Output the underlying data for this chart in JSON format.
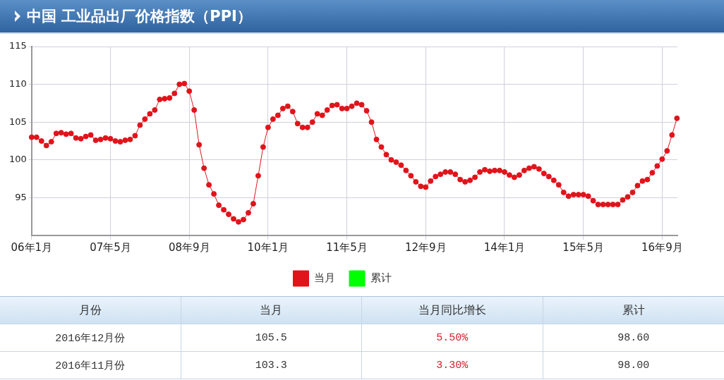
{
  "chart_data": {
    "type": "line",
    "title": "中国 工业品出厂价格指数（PPI）",
    "x": [
      "2006-01",
      "2006-02",
      "2006-03",
      "2006-04",
      "2006-05",
      "2006-06",
      "2006-07",
      "2006-08",
      "2006-09",
      "2006-10",
      "2006-11",
      "2006-12",
      "2007-01",
      "2007-02",
      "2007-03",
      "2007-04",
      "2007-05",
      "2007-06",
      "2007-07",
      "2007-08",
      "2007-09",
      "2007-10",
      "2007-11",
      "2007-12",
      "2008-01",
      "2008-02",
      "2008-03",
      "2008-04",
      "2008-05",
      "2008-06",
      "2008-07",
      "2008-08",
      "2008-09",
      "2008-10",
      "2008-11",
      "2008-12",
      "2009-01",
      "2009-02",
      "2009-03",
      "2009-04",
      "2009-05",
      "2009-06",
      "2009-07",
      "2009-08",
      "2009-09",
      "2009-10",
      "2009-11",
      "2009-12",
      "2010-01",
      "2010-02",
      "2010-03",
      "2010-04",
      "2010-05",
      "2010-06",
      "2010-07",
      "2010-08",
      "2010-09",
      "2010-10",
      "2010-11",
      "2010-12",
      "2011-01",
      "2011-02",
      "2011-03",
      "2011-04",
      "2011-05",
      "2011-06",
      "2011-07",
      "2011-08",
      "2011-09",
      "2011-10",
      "2011-11",
      "2011-12",
      "2012-01",
      "2012-02",
      "2012-03",
      "2012-04",
      "2012-05",
      "2012-06",
      "2012-07",
      "2012-08",
      "2012-09",
      "2012-10",
      "2012-11",
      "2012-12",
      "2013-01",
      "2013-02",
      "2013-03",
      "2013-04",
      "2013-05",
      "2013-06",
      "2013-07",
      "2013-08",
      "2013-09",
      "2013-10",
      "2013-11",
      "2013-12",
      "2014-01",
      "2014-02",
      "2014-03",
      "2014-04",
      "2014-05",
      "2014-06",
      "2014-07",
      "2014-08",
      "2014-09",
      "2014-10",
      "2014-11",
      "2014-12",
      "2015-01",
      "2015-02",
      "2015-03",
      "2015-04",
      "2015-05",
      "2015-06",
      "2015-07",
      "2015-08",
      "2015-09",
      "2015-10",
      "2015-11",
      "2015-12",
      "2016-01",
      "2016-02",
      "2016-03",
      "2016-04",
      "2016-05",
      "2016-06",
      "2016-07",
      "2016-08",
      "2016-09",
      "2016-10",
      "2016-11",
      "2016-12"
    ],
    "series": [
      {
        "name": "当月",
        "color": "#e0141b",
        "values": [
          103.0,
          103.0,
          102.5,
          101.9,
          102.4,
          103.5,
          103.6,
          103.4,
          103.5,
          102.9,
          102.8,
          103.1,
          103.3,
          102.6,
          102.7,
          102.9,
          102.8,
          102.5,
          102.4,
          102.6,
          102.7,
          103.2,
          104.6,
          105.4,
          106.1,
          106.6,
          108.0,
          108.1,
          108.2,
          108.8,
          110.0,
          110.1,
          109.1,
          106.6,
          102.0,
          98.9,
          96.7,
          95.5,
          94.0,
          93.4,
          92.8,
          92.2,
          91.8,
          92.1,
          93.0,
          94.2,
          97.9,
          101.7,
          104.3,
          105.4,
          105.9,
          106.8,
          107.1,
          106.4,
          104.8,
          104.3,
          104.3,
          105.0,
          106.1,
          105.9,
          106.6,
          107.2,
          107.3,
          106.8,
          106.8,
          107.1,
          107.5,
          107.3,
          106.5,
          105.0,
          102.7,
          101.7,
          100.7,
          100.0,
          99.7,
          99.3,
          98.6,
          97.9,
          97.1,
          96.5,
          96.4,
          97.2,
          97.8,
          98.1,
          98.4,
          98.4,
          98.1,
          97.4,
          97.1,
          97.3,
          97.7,
          98.4,
          98.7,
          98.5,
          98.6,
          98.6,
          98.4,
          98.0,
          97.7,
          98.0,
          98.6,
          98.9,
          99.1,
          98.8,
          98.2,
          97.8,
          97.3,
          96.7,
          95.7,
          95.2,
          95.4,
          95.4,
          95.4,
          95.2,
          94.6,
          94.1,
          94.1,
          94.1,
          94.1,
          94.1,
          94.7,
          95.1,
          95.7,
          96.6,
          97.2,
          97.4,
          98.3,
          99.2,
          100.1,
          101.2,
          103.3,
          105.5
        ]
      },
      {
        "name": "累计",
        "color": "#00ff00",
        "values": [
          null,
          null,
          null,
          null,
          null,
          null,
          null,
          null,
          null,
          null,
          null,
          null,
          null,
          null,
          null,
          null,
          null,
          null,
          null,
          null,
          null,
          null,
          null,
          null,
          null,
          null,
          null,
          null,
          null,
          null,
          null,
          null,
          null,
          null,
          null,
          null,
          null,
          null,
          null,
          null,
          null,
          null,
          null,
          null,
          null,
          null,
          null,
          null,
          null,
          null,
          null,
          null,
          null,
          null,
          null,
          null,
          null,
          null,
          null,
          null,
          null,
          null,
          null,
          null,
          null,
          null,
          null,
          null,
          null,
          null,
          null,
          null,
          null,
          null,
          null,
          null,
          null,
          null,
          null,
          null,
          null,
          null,
          null,
          null,
          null,
          null,
          null,
          null,
          null,
          null,
          null,
          null,
          null,
          null,
          null,
          null,
          null,
          null,
          null,
          null,
          null,
          null,
          null,
          null,
          null,
          null,
          null,
          null,
          null,
          null,
          null,
          null,
          null,
          null,
          null,
          null,
          null,
          null,
          null,
          null,
          null,
          null,
          null,
          null,
          null,
          null,
          null,
          null,
          null,
          null,
          null,
          null
        ]
      }
    ],
    "xlim": [
      "2006-01",
      "2016-12"
    ],
    "xticks": [
      {
        "value": "2006-01",
        "label": "06年1月"
      },
      {
        "value": "2007-05",
        "label": "07年5月"
      },
      {
        "value": "2008-09",
        "label": "08年9月"
      },
      {
        "value": "2010-01",
        "label": "10年1月"
      },
      {
        "value": "2011-05",
        "label": "11年5月"
      },
      {
        "value": "2012-09",
        "label": "12年9月"
      },
      {
        "value": "2014-01",
        "label": "14年1月"
      },
      {
        "value": "2015-05",
        "label": "15年5月"
      },
      {
        "value": "2016-09",
        "label": "16年9月"
      }
    ],
    "ylim": [
      90,
      115
    ],
    "yticks": [
      95,
      100,
      105,
      110,
      115
    ],
    "grid": true,
    "legend": "bottom",
    "marker": "circle",
    "line_style": "solid",
    "annotations": [
      "月份",
      "当月",
      "当月同比增长",
      "累计",
      "2016年12月份",
      "105.5",
      "5.50%",
      "98.60",
      "2016年11月份",
      "103.3",
      "3.30%",
      "98.00"
    ]
  }
}
